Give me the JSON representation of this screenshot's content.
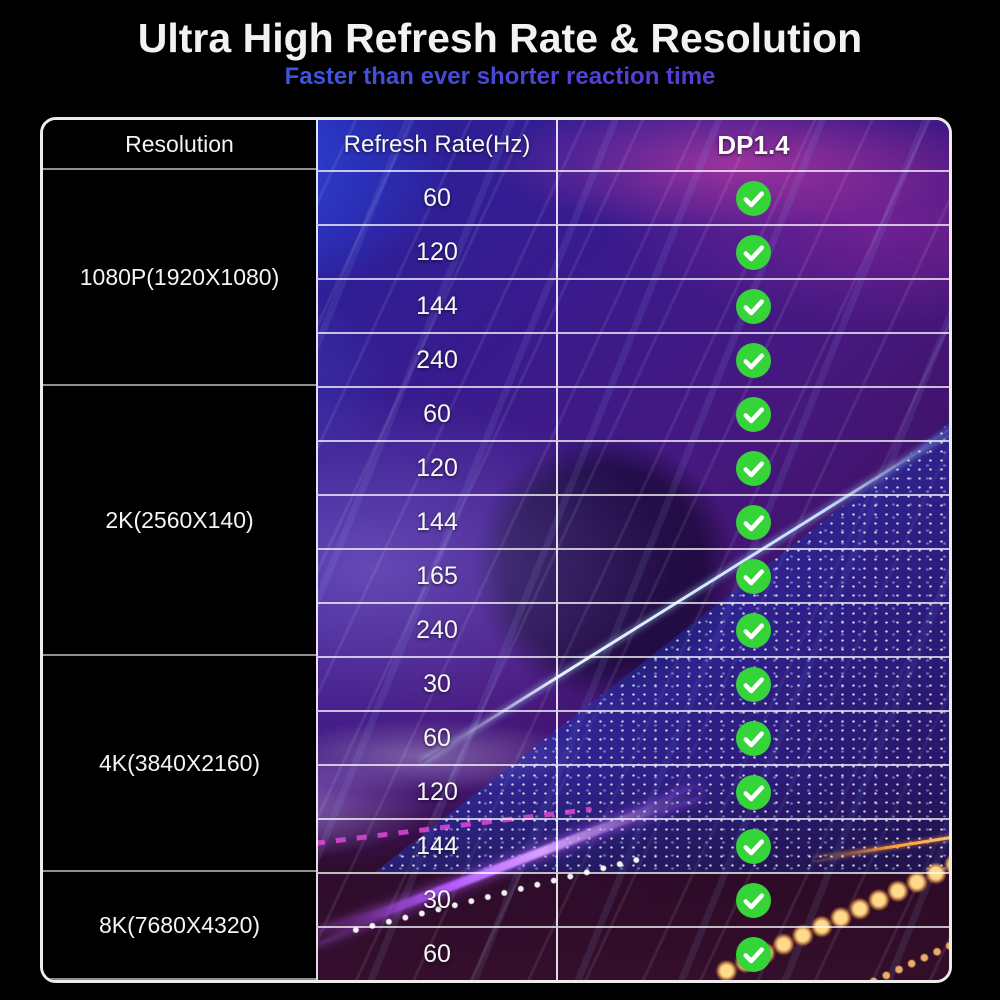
{
  "header": {
    "title": "Ultra High Refresh Rate & Resolution",
    "subtitle": "Faster than ever shorter reaction time"
  },
  "table": {
    "columns": [
      "Resolution",
      "Refresh Rate(Hz)",
      "DP1.4"
    ],
    "groups": [
      {
        "resolution": "1080P(1920X1080)",
        "rates": [
          "60",
          "120",
          "144",
          "240"
        ]
      },
      {
        "resolution": "2K(2560X140)",
        "rates": [
          "60",
          "120",
          "144",
          "165",
          "240"
        ]
      },
      {
        "resolution": "4K(3840X2160)",
        "rates": [
          "30",
          "60",
          "120",
          "144"
        ]
      },
      {
        "resolution": "8K(7680X4320)",
        "rates": [
          "30",
          "60"
        ]
      }
    ],
    "support_icon": "check-circle"
  },
  "colors": {
    "check_green": "#35d438",
    "check_mark": "#ffffff",
    "subtitle_blue": "#4349d6",
    "title_white": "#f2f2f2",
    "page_background": "#000000"
  },
  "chart_data": {
    "type": "table",
    "title": "Ultra High Refresh Rate & Resolution",
    "subtitle": "Faster than ever shorter reaction time",
    "columns": [
      "Resolution",
      "Refresh Rate(Hz)",
      "DP1.4"
    ],
    "rows": [
      [
        "1080P(1920X1080)",
        60,
        "supported"
      ],
      [
        "1080P(1920X1080)",
        120,
        "supported"
      ],
      [
        "1080P(1920X1080)",
        144,
        "supported"
      ],
      [
        "1080P(1920X1080)",
        240,
        "supported"
      ],
      [
        "2K(2560X140)",
        60,
        "supported"
      ],
      [
        "2K(2560X140)",
        120,
        "supported"
      ],
      [
        "2K(2560X140)",
        144,
        "supported"
      ],
      [
        "2K(2560X140)",
        165,
        "supported"
      ],
      [
        "2K(2560X140)",
        240,
        "supported"
      ],
      [
        "4K(3840X2160)",
        30,
        "supported"
      ],
      [
        "4K(3840X2160)",
        60,
        "supported"
      ],
      [
        "4K(3840X2160)",
        120,
        "supported"
      ],
      [
        "4K(3840X2160)",
        144,
        "supported"
      ],
      [
        "8K(7680X4320)",
        30,
        "supported"
      ],
      [
        "8K(7680X4320)",
        60,
        "supported"
      ]
    ]
  }
}
